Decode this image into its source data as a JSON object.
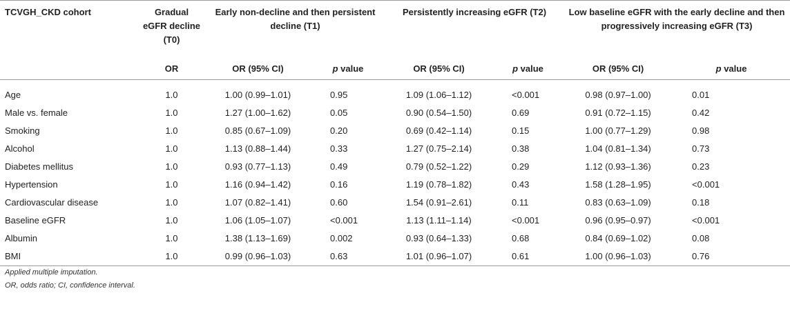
{
  "table": {
    "corner_label": "TCVGH_CKD cohort",
    "groups": {
      "t0": "Gradual eGFR decline (T0)",
      "t1": "Early non-decline and then persistent decline (T1)",
      "t2": "Persistently increasing eGFR (T2)",
      "t3": "Low baseline eGFR with the early decline and then progressively increasing eGFR (T3)"
    },
    "subheaders": {
      "or": "OR",
      "or_ci": "OR (95% CI)",
      "p_letter": "p",
      "p_suffix": " value"
    },
    "rows": [
      {
        "label": "Age",
        "t0": "1.0",
        "t1_or": "1.00 (0.99–1.01)",
        "t1_p": "0.95",
        "t2_or": "1.09 (1.06–1.12)",
        "t2_p": "<0.001",
        "t3_or": "0.98 (0.97–1.00)",
        "t3_p": "0.01"
      },
      {
        "label": "Male vs. female",
        "t0": "1.0",
        "t1_or": "1.27 (1.00–1.62)",
        "t1_p": "0.05",
        "t2_or": "0.90 (0.54–1.50)",
        "t2_p": "0.69",
        "t3_or": "0.91 (0.72–1.15)",
        "t3_p": "0.42"
      },
      {
        "label": "Smoking",
        "t0": "1.0",
        "t1_or": "0.85 (0.67–1.09)",
        "t1_p": "0.20",
        "t2_or": "0.69 (0.42–1.14)",
        "t2_p": "0.15",
        "t3_or": "1.00 (0.77–1.29)",
        "t3_p": "0.98"
      },
      {
        "label": "Alcohol",
        "t0": "1.0",
        "t1_or": "1.13 (0.88–1.44)",
        "t1_p": "0.33",
        "t2_or": "1.27 (0.75–2.14)",
        "t2_p": "0.38",
        "t3_or": "1.04 (0.81–1.34)",
        "t3_p": "0.73"
      },
      {
        "label": "Diabetes mellitus",
        "t0": "1.0",
        "t1_or": "0.93 (0.77–1.13)",
        "t1_p": "0.49",
        "t2_or": "0.79 (0.52–1.22)",
        "t2_p": "0.29",
        "t3_or": "1.12 (0.93–1.36)",
        "t3_p": "0.23"
      },
      {
        "label": "Hypertension",
        "t0": "1.0",
        "t1_or": "1.16 (0.94–1.42)",
        "t1_p": "0.16",
        "t2_or": "1.19 (0.78–1.82)",
        "t2_p": "0.43",
        "t3_or": "1.58 (1.28–1.95)",
        "t3_p": "<0.001"
      },
      {
        "label": "Cardiovascular disease",
        "t0": "1.0",
        "t1_or": "1.07 (0.82–1.41)",
        "t1_p": "0.60",
        "t2_or": "1.54 (0.91–2.61)",
        "t2_p": "0.11",
        "t3_or": "0.83 (0.63–1.09)",
        "t3_p": "0.18"
      },
      {
        "label": "Baseline eGFR",
        "t0": "1.0",
        "t1_or": "1.06 (1.05–1.07)",
        "t1_p": "<0.001",
        "t2_or": "1.13 (1.11–1.14)",
        "t2_p": "<0.001",
        "t3_or": "0.96 (0.95–0.97)",
        "t3_p": "<0.001"
      },
      {
        "label": "Albumin",
        "t0": "1.0",
        "t1_or": "1.38 (1.13–1.69)",
        "t1_p": "0.002",
        "t2_or": "0.93 (0.64–1.33)",
        "t2_p": "0.68",
        "t3_or": "0.84 (0.69–1.02)",
        "t3_p": "0.08"
      },
      {
        "label": "BMI",
        "t0": "1.0",
        "t1_or": "0.99 (0.96–1.03)",
        "t1_p": "0.63",
        "t2_or": "1.01 (0.96–1.07)",
        "t2_p": "0.61",
        "t3_or": "1.00 (0.96–1.03)",
        "t3_p": "0.76"
      }
    ]
  },
  "footnotes": [
    "Applied multiple imputation.",
    "OR, odds ratio; CI, confidence interval."
  ]
}
